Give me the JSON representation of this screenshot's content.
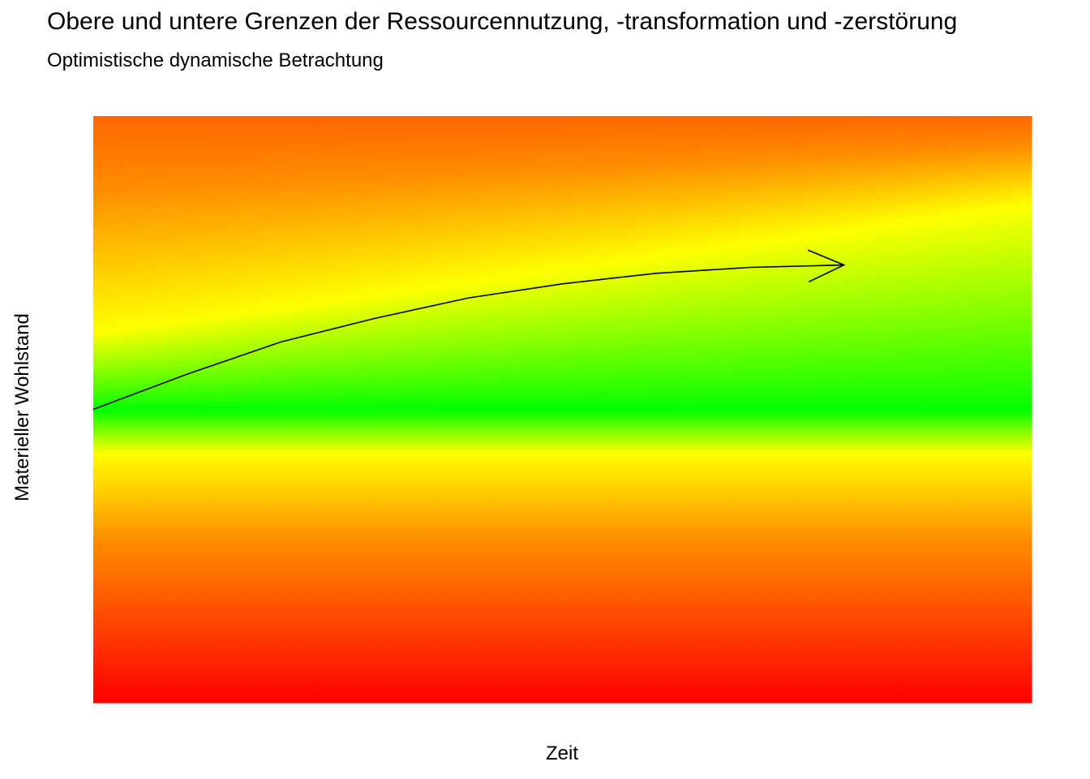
{
  "chart_data": {
    "type": "heatmap",
    "title": "Obere und untere Grenzen der Ressourcennutzung, -transformation und -zerstörung",
    "subtitle": "Optimistische dynamische Betrachtung",
    "xlabel": "Zeit",
    "ylabel": "Materieller Wohlstand",
    "xlim": [
      0,
      1
    ],
    "ylim": [
      0,
      1
    ],
    "grid": false,
    "legend": "none",
    "color_scale": {
      "stops": [
        {
          "distance": 0.0,
          "color": "#00ff00"
        },
        {
          "distance": 0.15,
          "color": "#ffff00"
        },
        {
          "distance": 0.45,
          "color": "#ff8c00"
        },
        {
          "distance": 1.0,
          "color": "#ff0000"
        }
      ]
    },
    "lower_limit": {
      "x": [
        0,
        1
      ],
      "y": [
        0.5,
        0.5
      ]
    },
    "upper_limit": {
      "x": [
        0,
        1
      ],
      "y": [
        0.63,
        0.85
      ]
    },
    "path": {
      "x": [
        0.0,
        0.1,
        0.2,
        0.3,
        0.4,
        0.5,
        0.6,
        0.7,
        0.8
      ],
      "y": [
        0.5,
        0.56,
        0.615,
        0.655,
        0.69,
        0.714,
        0.732,
        0.742,
        0.746
      ],
      "arrow": true
    }
  }
}
